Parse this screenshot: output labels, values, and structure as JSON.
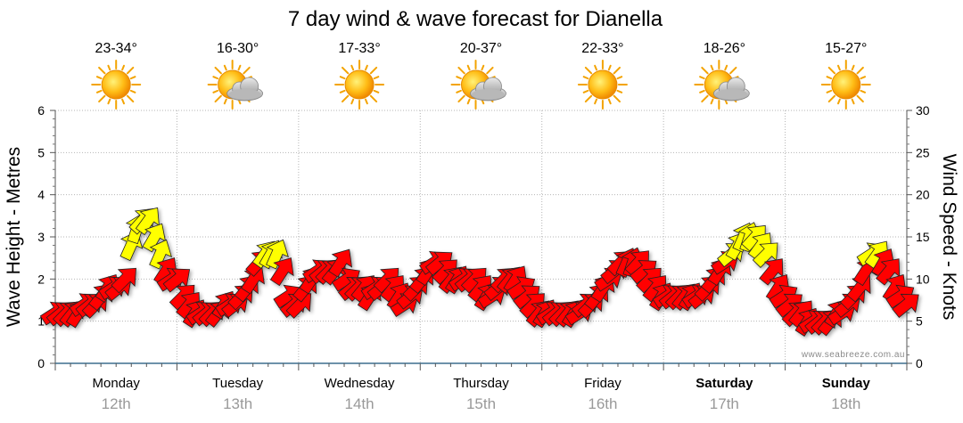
{
  "title": "7 day wind & wave forecast for Dianella",
  "credit": "www.seabreeze.com.au",
  "days": [
    {
      "name": "Monday",
      "date": "12th",
      "temp": "23-34°",
      "weather_icon": "sun-icon",
      "bold": false
    },
    {
      "name": "Tuesday",
      "date": "13th",
      "temp": "16-30°",
      "weather_icon": "sun-cloud-icon",
      "bold": false
    },
    {
      "name": "Wednesday",
      "date": "14th",
      "temp": "17-33°",
      "weather_icon": "sun-icon",
      "bold": false
    },
    {
      "name": "Thursday",
      "date": "15th",
      "temp": "20-37°",
      "weather_icon": "sun-cloud-icon",
      "bold": false
    },
    {
      "name": "Friday",
      "date": "16th",
      "temp": "22-33°",
      "weather_icon": "sun-icon",
      "bold": false
    },
    {
      "name": "Saturday",
      "date": "17th",
      "temp": "18-26°",
      "weather_icon": "sun-cloud-icon",
      "bold": true
    },
    {
      "name": "Sunday",
      "date": "18th",
      "temp": "15-27°",
      "weather_icon": "sun-icon",
      "bold": true
    }
  ],
  "chart_data": {
    "type": "line",
    "title": "7 day wind & wave forecast for Dianella",
    "ylabel_left": "Wave Height - Metres",
    "ylabel_right": "Wind Speed - Knots",
    "ylim_left": [
      0,
      6
    ],
    "ylim_right": [
      0,
      30
    ],
    "yticks_left": [
      "0",
      "1",
      "2",
      "3",
      "4",
      "5",
      "6"
    ],
    "yticks_right": [
      "0",
      "5",
      "10",
      "15",
      "20",
      "25",
      "30"
    ],
    "grid": true,
    "colors": {
      "strong": "#ffff00",
      "normal": "#ff0000",
      "outline": "#222222"
    },
    "series": [
      {
        "unit": "knots",
        "values": [
          6,
          6,
          6,
          6,
          6,
          7,
          7,
          7,
          8,
          9,
          9,
          9,
          10,
          14,
          16,
          17,
          17,
          15,
          13,
          11,
          10,
          10,
          8,
          7,
          6,
          6,
          6,
          6,
          6,
          7,
          7,
          7,
          8,
          9,
          10,
          12,
          13,
          13,
          13,
          11,
          8,
          7,
          7,
          9,
          10,
          11,
          11,
          11,
          11,
          12,
          10,
          9,
          9,
          9,
          8,
          9,
          9,
          10,
          9,
          8,
          7,
          8,
          9,
          10,
          11,
          12,
          12,
          11,
          10,
          10,
          10,
          10,
          10,
          9,
          8,
          8,
          9,
          10,
          10,
          10,
          9,
          8,
          7,
          6,
          6,
          6,
          6,
          6,
          6,
          6,
          6,
          7,
          7,
          8,
          9,
          10,
          11,
          12,
          12,
          12,
          12,
          11,
          10,
          9,
          8,
          8,
          8,
          8,
          8,
          8,
          8,
          8,
          9,
          10,
          11,
          12,
          13,
          14,
          15,
          15,
          15,
          14,
          13,
          11,
          9,
          8,
          7,
          6,
          6,
          5,
          5,
          5,
          5,
          5,
          6,
          6,
          7,
          8,
          9,
          11,
          13,
          13,
          12,
          11,
          9,
          8,
          7
        ],
        "direction_deg": [
          45,
          45,
          45,
          45,
          45,
          45,
          45,
          45,
          45,
          45,
          45,
          45,
          45,
          60,
          60,
          60,
          60,
          60,
          60,
          45,
          45,
          45,
          45,
          45,
          45,
          45,
          45,
          45,
          45,
          45,
          45,
          45,
          45,
          45,
          45,
          60,
          60,
          60,
          60,
          45,
          45,
          45,
          45,
          45,
          45,
          45,
          45,
          45,
          45,
          45,
          45,
          45,
          45,
          45,
          45,
          45,
          45,
          45,
          45,
          45,
          45,
          45,
          45,
          45,
          45,
          45,
          45,
          45,
          45,
          45,
          45,
          45,
          45,
          45,
          45,
          45,
          45,
          45,
          45,
          45,
          45,
          45,
          45,
          45,
          45,
          45,
          45,
          45,
          45,
          45,
          45,
          45,
          45,
          45,
          45,
          45,
          45,
          45,
          60,
          60,
          60,
          45,
          45,
          45,
          45,
          45,
          45,
          45,
          45,
          45,
          45,
          45,
          45,
          45,
          45,
          45,
          45,
          60,
          60,
          60,
          60,
          60,
          45,
          45,
          45,
          45,
          45,
          45,
          45,
          45,
          45,
          45,
          45,
          45,
          45,
          45,
          45,
          45,
          45,
          45,
          45,
          60,
          60,
          45,
          45,
          45,
          45
        ]
      }
    ]
  }
}
